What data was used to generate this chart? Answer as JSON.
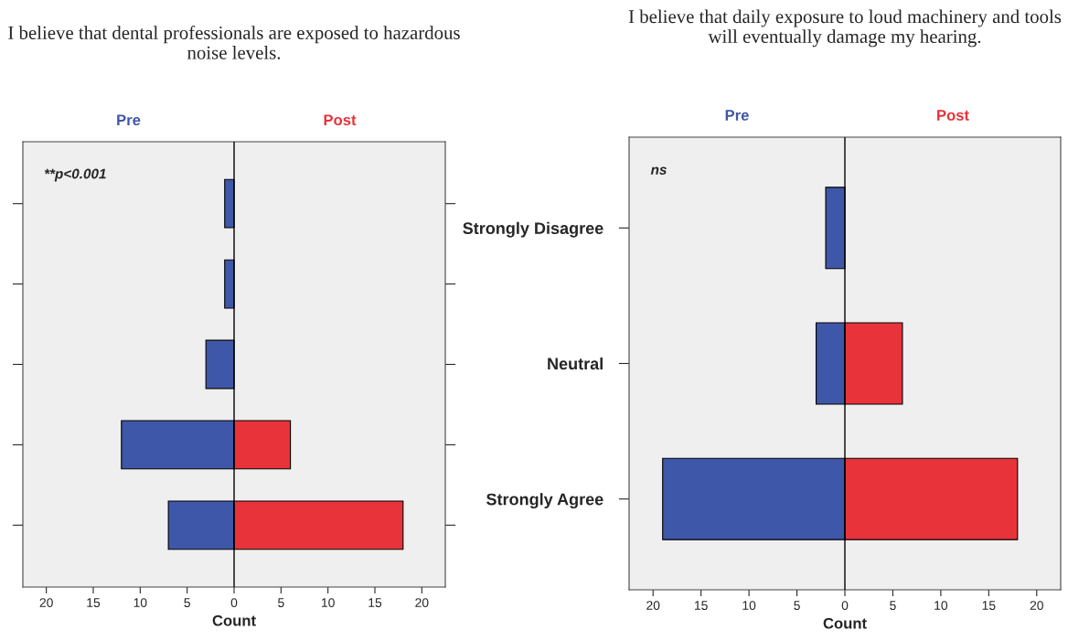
{
  "chart_data": [
    {
      "type": "bar",
      "orientation": "horizontal",
      "stacked": true,
      "title": "I believe that dental professionals are exposed to hazardous noise levels.",
      "xlabel": "Count",
      "categories": [
        null,
        null,
        null,
        null,
        null
      ],
      "series": [
        {
          "name": "Pre",
          "color": "#3f57a8",
          "values": [
            -1,
            -1,
            -3,
            -12,
            -7
          ]
        },
        {
          "name": "Post",
          "color": "#e8333a",
          "values": [
            0,
            0,
            0,
            6,
            18
          ]
        }
      ],
      "xlim": [
        -22.5,
        22.5
      ],
      "xticks": [
        {
          "value": -20,
          "label": "20"
        },
        {
          "value": -15,
          "label": "15"
        },
        {
          "value": -10,
          "label": "10"
        },
        {
          "value": -5,
          "label": "5"
        },
        0,
        5,
        10,
        15,
        20
      ],
      "ref_lines": [
        {
          "axis": "x",
          "value": 0
        }
      ],
      "annotations": [
        "**p<0.001"
      ],
      "tick_labels": "x",
      "grid": false,
      "legend": false
    },
    {
      "type": "bar",
      "orientation": "horizontal",
      "stacked": true,
      "title": "I believe that daily exposure to loud machinery and tools will eventually damage my hearing.",
      "xlabel": "Count",
      "categories": [
        "Strongly Disagree",
        "Neutral",
        "Strongly Agree"
      ],
      "series": [
        {
          "name": "Pre",
          "color": "#3f57a8",
          "values": [
            -2,
            -3,
            -19
          ]
        },
        {
          "name": "Post",
          "color": "#e8333a",
          "values": [
            0,
            6,
            18
          ]
        }
      ],
      "xlim": [
        -22.5,
        22.5
      ],
      "xticks": [
        {
          "value": -20,
          "label": "20"
        },
        {
          "value": -15,
          "label": "15"
        },
        {
          "value": -10,
          "label": "10"
        },
        {
          "value": -5,
          "label": "5"
        },
        0,
        5,
        10,
        15,
        20
      ],
      "ref_lines": [
        {
          "axis": "x",
          "value": 0
        }
      ],
      "annotations": [
        "ns"
      ],
      "grid": false,
      "legend": false
    }
  ]
}
